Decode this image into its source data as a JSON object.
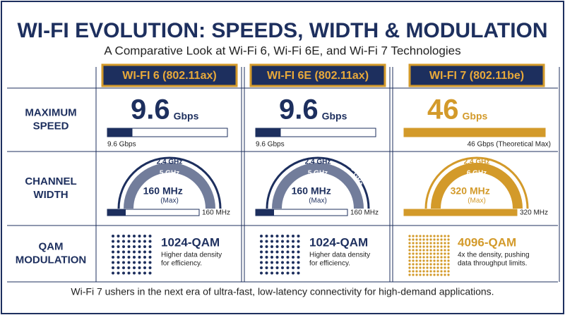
{
  "header": {
    "title": "WI-FI EVOLUTION: SPEEDS, WIDTH & MODULATION",
    "subtitle": "A Comparative Look at Wi-Fi 6, Wi-Fi 6E, and Wi-Fi 7 Technologies"
  },
  "rows": [
    [
      "MAXIMUM",
      "SPEED"
    ],
    [
      "CHANNEL",
      "WIDTH"
    ],
    [
      "QAM",
      "MODULATION"
    ]
  ],
  "columns": [
    {
      "name": "WI-FI 6 (802.11ax)",
      "color": "#1d2f5e",
      "speed": {
        "value": 9.6,
        "unit": "Gbps",
        "bar_label": "9.6 Gbps"
      },
      "width": {
        "bands": [
          "2.4 GHz",
          "5 GHz"
        ],
        "value": 160,
        "unit": "MHz",
        "note": "(Max)",
        "bar_label": "160 MHz"
      },
      "qam": {
        "label": "1024-QAM",
        "description": [
          "Higher data density",
          "for efficiency."
        ]
      }
    },
    {
      "name": "WI-FI 6E (802.11ax)",
      "color": "#1d2f5e",
      "speed": {
        "value": 9.6,
        "unit": "Gbps",
        "bar_label": "9.6 Gbps"
      },
      "width": {
        "bands": [
          "2.4 GHz",
          "5 GHz",
          "6 GHz"
        ],
        "value": 160,
        "unit": "MHz",
        "note": "(Max)",
        "bar_label": "160 MHz"
      },
      "qam": {
        "label": "1024-QAM",
        "description": [
          "Higher data density",
          "for efficiency."
        ]
      }
    },
    {
      "name": "WI-FI 7 (802.11be)",
      "color": "#d39a2a",
      "speed": {
        "value": 46,
        "unit": "Gbps",
        "bar_label": "46 Gbps (Theoretical Max)"
      },
      "width": {
        "bands": [
          "2.4 GHz",
          "6 GHz"
        ],
        "value": 320,
        "unit": "MHz",
        "note": "(Max)",
        "bar_label": "320 MHz"
      },
      "qam": {
        "label": "4096-QAM",
        "description": [
          "4x the density, pushing",
          "data throughput limits."
        ]
      }
    }
  ],
  "footer": "Wi-Fi 7 ushers in the next era of ultra-fast, low-latency connectivity for high-demand applications."
}
